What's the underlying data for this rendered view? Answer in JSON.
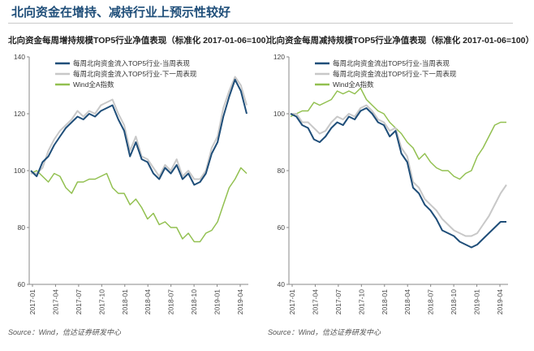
{
  "page_title": "北向资金在增持、减持行业上预示性较好",
  "source_left": "Source：Wind，信达证券研发中心",
  "source_right": "Source：Wind，信达证券研发中心",
  "colors": {
    "dark_blue": "#1f4e79",
    "light_gray": "#c8c8c8",
    "green": "#92c050",
    "axis": "#888888"
  },
  "chart_data": [
    {
      "type": "line",
      "title": "北向资金每周增持规模TOP5行业净值表现（标准化 2017-01-06=100）",
      "ylim": [
        60,
        140
      ],
      "yticks": [
        60,
        80,
        100,
        120,
        140
      ],
      "xticks": [
        "2017-01",
        "2017-04",
        "2017-07",
        "2017-10",
        "2018-01",
        "2018-04",
        "2018-07",
        "2018-10",
        "2019-01",
        "2019-04"
      ],
      "legend_position": "top-left",
      "series": [
        {
          "name": "每周北向资金流入TOP5行业-当周表现",
          "color": "#1f4e79",
          "width": 2,
          "values": [
            100,
            98,
            103,
            105,
            109,
            112,
            115,
            117,
            119,
            118,
            120,
            119,
            121,
            122,
            123,
            118,
            114,
            105,
            110,
            104,
            103,
            99,
            97,
            101,
            99,
            102,
            97,
            99,
            95,
            96,
            99,
            106,
            110,
            119,
            126,
            132,
            128,
            120
          ]
        },
        {
          "name": "每周北向资金流入TOP5行业-下一周表现",
          "color": "#c8c8c8",
          "width": 2,
          "values": [
            99,
            99,
            101,
            107,
            111,
            114,
            116,
            118,
            121,
            119,
            121,
            120,
            123,
            124,
            125,
            120,
            116,
            107,
            112,
            105,
            104,
            101,
            98,
            102,
            100,
            104,
            98,
            100,
            97,
            97,
            100,
            108,
            112,
            122,
            128,
            133,
            130,
            123
          ]
        },
        {
          "name": "Wind全A指数",
          "color": "#92c050",
          "width": 1.5,
          "values": [
            99,
            100,
            98,
            96,
            99,
            98,
            94,
            92,
            96,
            96,
            97,
            97,
            98,
            99,
            94,
            92,
            92,
            88,
            90,
            87,
            83,
            85,
            81,
            82,
            80,
            80,
            76,
            78,
            75,
            75,
            78,
            79,
            82,
            88,
            94,
            97,
            101,
            99
          ]
        }
      ]
    },
    {
      "type": "line",
      "title": "北向资金每周减持规模TOP5行业净值表现（标准化 2017-01-06=100）",
      "ylim": [
        40,
        120
      ],
      "yticks": [
        40,
        60,
        80,
        100,
        120
      ],
      "xticks": [
        "2017-01",
        "2017-04",
        "2017-07",
        "2017-10",
        "2018-01",
        "2018-04",
        "2018-07",
        "2018-10",
        "2019-01",
        "2019-04"
      ],
      "legend_position": "top-left",
      "series": [
        {
          "name": "每周北向资金流出TOP5行业-当周表现",
          "color": "#1f4e79",
          "width": 2,
          "values": [
            100,
            99,
            96,
            95,
            91,
            90,
            92,
            95,
            97,
            96,
            99,
            98,
            101,
            102,
            100,
            97,
            96,
            92,
            94,
            86,
            83,
            74,
            72,
            68,
            66,
            63,
            59,
            58,
            57,
            55,
            54,
            53,
            54,
            56,
            58,
            60,
            62,
            62
          ]
        },
        {
          "name": "每周北向资金流出TOP5行业-下一周表现",
          "color": "#c8c8c8",
          "width": 2,
          "values": [
            100,
            100,
            97,
            97,
            95,
            93,
            94,
            97,
            99,
            98,
            100,
            99,
            102,
            103,
            101,
            98,
            97,
            94,
            95,
            88,
            85,
            76,
            74,
            70,
            68,
            66,
            63,
            61,
            59,
            58,
            57,
            57,
            58,
            61,
            64,
            68,
            72,
            75
          ]
        },
        {
          "name": "Wind全A指数",
          "color": "#92c050",
          "width": 1.5,
          "values": [
            99,
            100,
            101,
            101,
            104,
            103,
            104,
            105,
            108,
            107,
            108,
            107,
            109,
            105,
            103,
            101,
            100,
            97,
            95,
            93,
            90,
            88,
            84,
            86,
            83,
            81,
            80,
            80,
            78,
            77,
            79,
            80,
            85,
            88,
            92,
            96,
            97,
            97
          ]
        }
      ]
    }
  ]
}
